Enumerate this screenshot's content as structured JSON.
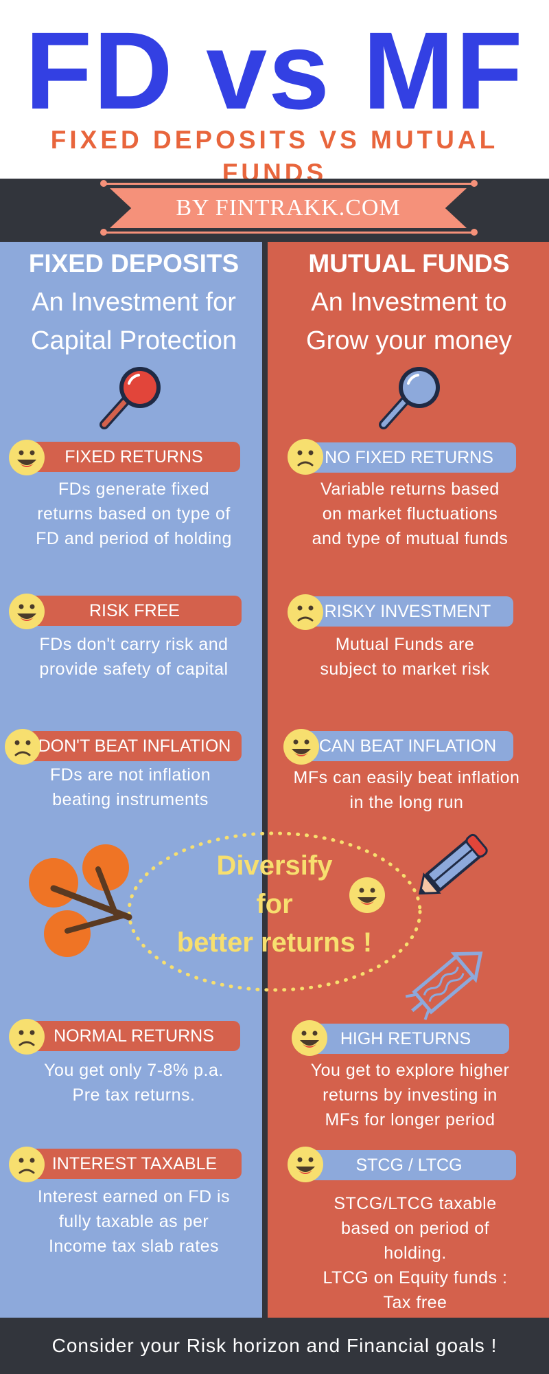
{
  "header": {
    "title": "FD vs MF",
    "subtitle": "FIXED DEPOSITS VS MUTUAL FUNDS",
    "byline": "BY FINTRAKK.COM"
  },
  "colors": {
    "title_blue": "#3340E3",
    "subtitle_orange": "#E8653C",
    "dark_band": "#32353C",
    "ribbon_pink": "#F5917A",
    "fd_blue": "#8DA9DB",
    "mf_red": "#D4614C",
    "highlight_yellow": "#F7DF6F",
    "fruit_orange": "#EF7425"
  },
  "left": {
    "heading": "FIXED DEPOSITS",
    "tagline_1": "An Investment for",
    "tagline_2": "Capital Protection",
    "icon": "magnifier-red-icon",
    "items": [
      {
        "label": "FIXED RETURNS",
        "mood": "happy",
        "desc": "FDs generate fixed\nreturns based on type of\nFD and period of holding"
      },
      {
        "label": "RISK FREE",
        "mood": "happy",
        "desc": "FDs don't carry risk and\nprovide safety of capital"
      },
      {
        "label": "DON'T BEAT INFLATION",
        "mood": "sad",
        "desc": "FDs are not inflation\nbeating instruments"
      },
      {
        "label": "NORMAL RETURNS",
        "mood": "sad",
        "desc": "You get only 7-8% p.a.\nPre tax returns."
      },
      {
        "label": "INTEREST TAXABLE",
        "mood": "sad",
        "desc": "Interest earned on FD is\nfully taxable as per\nIncome tax slab rates"
      }
    ]
  },
  "right": {
    "heading": "MUTUAL FUNDS",
    "tagline_1": "An Investment to",
    "tagline_2": "Grow your money",
    "icon": "magnifier-blue-icon",
    "items": [
      {
        "label": "NO FIXED RETURNS",
        "mood": "sad",
        "desc": "Variable returns based\non market fluctuations\nand type of mutual funds"
      },
      {
        "label": "RISKY INVESTMENT",
        "mood": "sad",
        "desc": "Mutual Funds are\nsubject to market risk"
      },
      {
        "label": "CAN BEAT INFLATION",
        "mood": "happy",
        "desc": "MFs can easily beat inflation\nin the long run"
      },
      {
        "label": "HIGH RETURNS",
        "mood": "happy",
        "desc": "You get to explore higher\nreturns by investing in\nMFs for longer period"
      },
      {
        "label": "STCG / LTCG",
        "mood": "happy",
        "desc": "STCG/LTCG taxable\nbased on period of\nholding.\nLTCG on Equity funds :\nTax free"
      }
    ]
  },
  "center": {
    "line_1": "Diversify",
    "line_2": "for",
    "line_3": "better returns !",
    "icons": [
      "fruit-branch-icon",
      "pencil-icon",
      "rocket-icon",
      "happy-face-icon"
    ]
  },
  "footer": {
    "text": "Consider your Risk horizon and Financial goals !"
  }
}
